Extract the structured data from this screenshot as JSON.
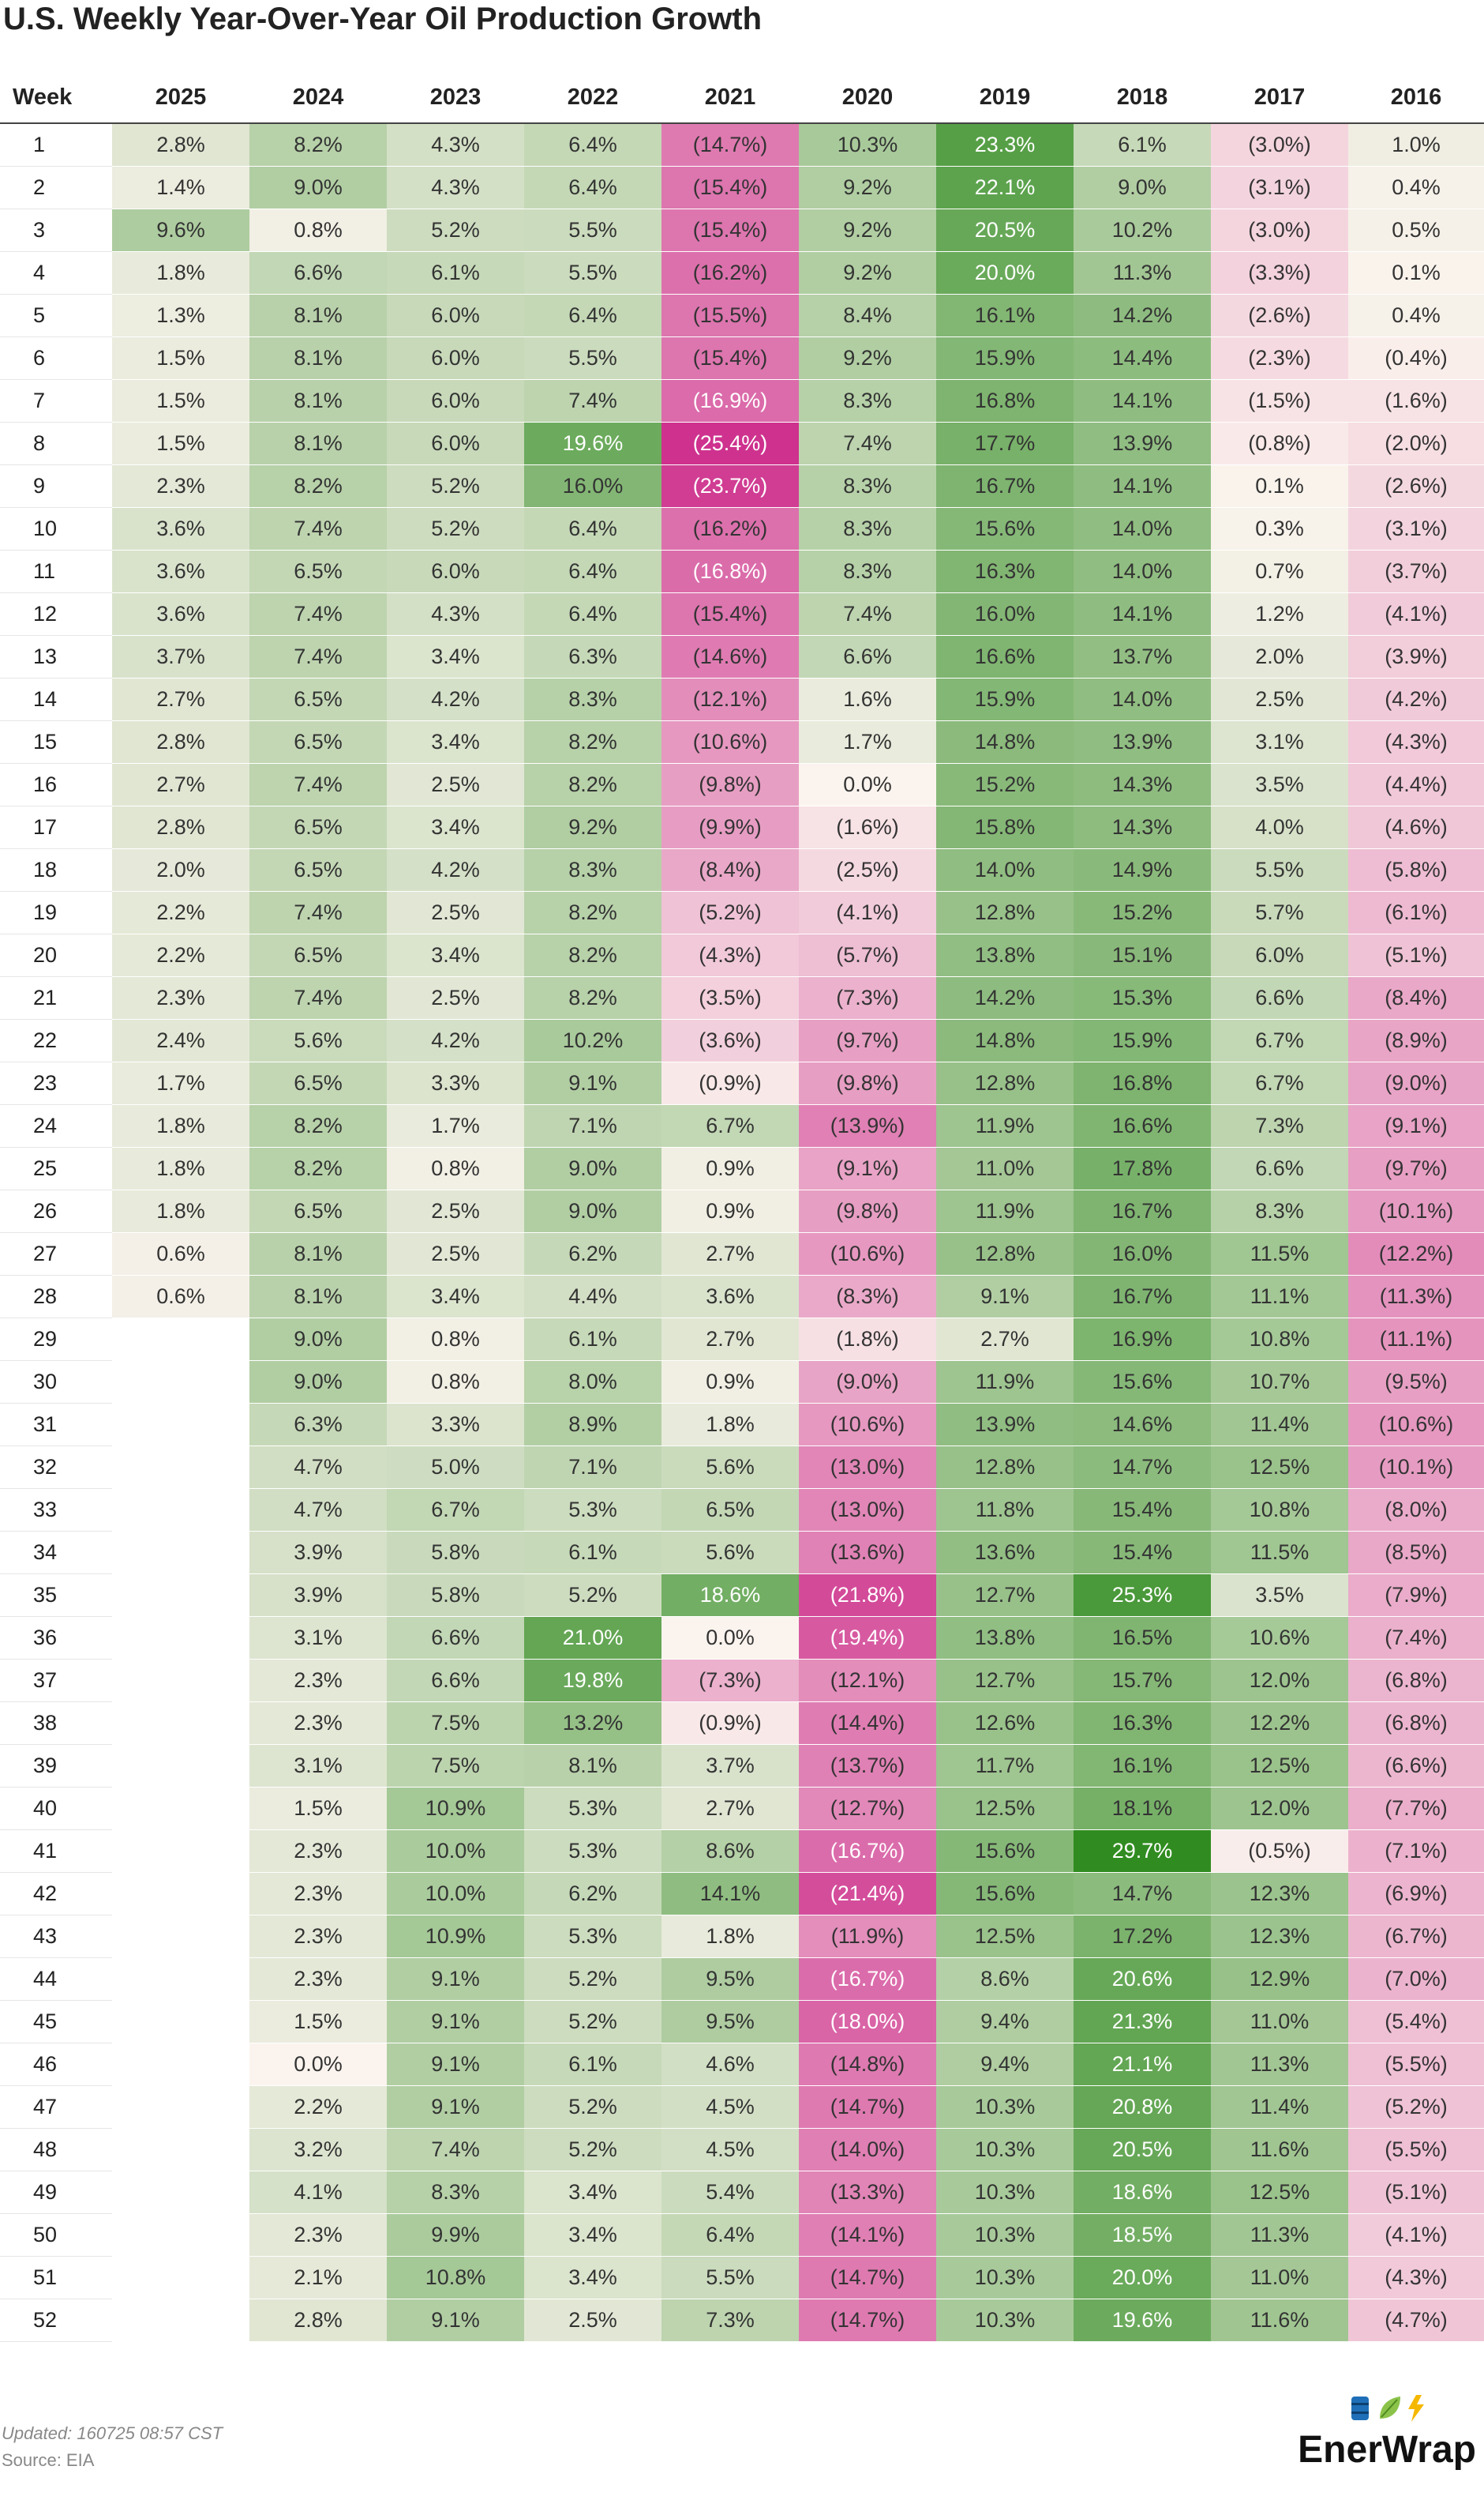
{
  "title": "U.S. Weekly Year-Over-Year Oil Production Growth",
  "footer": {
    "updated": "Updated: 160725 08:57 CST",
    "source": "Source: EIA"
  },
  "brand": {
    "name": "EnerWrap",
    "icons": [
      "oil-barrel-icon",
      "leaf-icon",
      "lightning-icon"
    ]
  },
  "chart_data": {
    "type": "heatmap",
    "title": "U.S. Weekly Year-Over-Year Oil Production Growth",
    "row_header": "Week",
    "columns": [
      "2025",
      "2024",
      "2023",
      "2022",
      "2021",
      "2020",
      "2019",
      "2018",
      "2017",
      "2016"
    ],
    "colors": {
      "negative_max": "#c7157f",
      "neutral": "#fbf4ee",
      "positive_max": "#2e8b1e"
    },
    "color_domain": [
      -30,
      30
    ],
    "rows": [
      {
        "week": "1",
        "values": [
          "2.8%",
          "8.2%",
          "4.3%",
          "6.4%",
          "(14.7%)",
          "10.3%",
          "23.3%",
          "6.1%",
          "(3.0%)",
          "1.0%"
        ]
      },
      {
        "week": "2",
        "values": [
          "1.4%",
          "9.0%",
          "4.3%",
          "6.4%",
          "(15.4%)",
          "9.2%",
          "22.1%",
          "9.0%",
          "(3.1%)",
          "0.4%"
        ]
      },
      {
        "week": "3",
        "values": [
          "9.6%",
          "0.8%",
          "5.2%",
          "5.5%",
          "(15.4%)",
          "9.2%",
          "20.5%",
          "10.2%",
          "(3.0%)",
          "0.5%"
        ]
      },
      {
        "week": "4",
        "values": [
          "1.8%",
          "6.6%",
          "6.1%",
          "5.5%",
          "(16.2%)",
          "9.2%",
          "20.0%",
          "11.3%",
          "(3.3%)",
          "0.1%"
        ]
      },
      {
        "week": "5",
        "values": [
          "1.3%",
          "8.1%",
          "6.0%",
          "6.4%",
          "(15.5%)",
          "8.4%",
          "16.1%",
          "14.2%",
          "(2.6%)",
          "0.4%"
        ]
      },
      {
        "week": "6",
        "values": [
          "1.5%",
          "8.1%",
          "6.0%",
          "5.5%",
          "(15.4%)",
          "9.2%",
          "15.9%",
          "14.4%",
          "(2.3%)",
          "(0.4%)"
        ]
      },
      {
        "week": "7",
        "values": [
          "1.5%",
          "8.1%",
          "6.0%",
          "7.4%",
          "(16.9%)",
          "8.3%",
          "16.8%",
          "14.1%",
          "(1.5%)",
          "(1.6%)"
        ]
      },
      {
        "week": "8",
        "values": [
          "1.5%",
          "8.1%",
          "6.0%",
          "19.6%",
          "(25.4%)",
          "7.4%",
          "17.7%",
          "13.9%",
          "(0.8%)",
          "(2.0%)"
        ]
      },
      {
        "week": "9",
        "values": [
          "2.3%",
          "8.2%",
          "5.2%",
          "16.0%",
          "(23.7%)",
          "8.3%",
          "16.7%",
          "14.1%",
          "0.1%",
          "(2.6%)"
        ]
      },
      {
        "week": "10",
        "values": [
          "3.6%",
          "7.4%",
          "5.2%",
          "6.4%",
          "(16.2%)",
          "8.3%",
          "15.6%",
          "14.0%",
          "0.3%",
          "(3.1%)"
        ]
      },
      {
        "week": "11",
        "values": [
          "3.6%",
          "6.5%",
          "6.0%",
          "6.4%",
          "(16.8%)",
          "8.3%",
          "16.3%",
          "14.0%",
          "0.7%",
          "(3.7%)"
        ]
      },
      {
        "week": "12",
        "values": [
          "3.6%",
          "7.4%",
          "4.3%",
          "6.4%",
          "(15.4%)",
          "7.4%",
          "16.0%",
          "14.1%",
          "1.2%",
          "(4.1%)"
        ]
      },
      {
        "week": "13",
        "values": [
          "3.7%",
          "7.4%",
          "3.4%",
          "6.3%",
          "(14.6%)",
          "6.6%",
          "16.6%",
          "13.7%",
          "2.0%",
          "(3.9%)"
        ]
      },
      {
        "week": "14",
        "values": [
          "2.7%",
          "6.5%",
          "4.2%",
          "8.3%",
          "(12.1%)",
          "1.6%",
          "15.9%",
          "14.0%",
          "2.5%",
          "(4.2%)"
        ]
      },
      {
        "week": "15",
        "values": [
          "2.8%",
          "6.5%",
          "3.4%",
          "8.2%",
          "(10.6%)",
          "1.7%",
          "14.8%",
          "13.9%",
          "3.1%",
          "(4.3%)"
        ]
      },
      {
        "week": "16",
        "values": [
          "2.7%",
          "7.4%",
          "2.5%",
          "8.2%",
          "(9.8%)",
          "0.0%",
          "15.2%",
          "14.3%",
          "3.5%",
          "(4.4%)"
        ]
      },
      {
        "week": "17",
        "values": [
          "2.8%",
          "6.5%",
          "3.4%",
          "9.2%",
          "(9.9%)",
          "(1.6%)",
          "15.8%",
          "14.3%",
          "4.0%",
          "(4.6%)"
        ]
      },
      {
        "week": "18",
        "values": [
          "2.0%",
          "6.5%",
          "4.2%",
          "8.3%",
          "(8.4%)",
          "(2.5%)",
          "14.0%",
          "14.9%",
          "5.5%",
          "(5.8%)"
        ]
      },
      {
        "week": "19",
        "values": [
          "2.2%",
          "7.4%",
          "2.5%",
          "8.2%",
          "(5.2%)",
          "(4.1%)",
          "12.8%",
          "15.2%",
          "5.7%",
          "(6.1%)"
        ]
      },
      {
        "week": "20",
        "values": [
          "2.2%",
          "6.5%",
          "3.4%",
          "8.2%",
          "(4.3%)",
          "(5.7%)",
          "13.8%",
          "15.1%",
          "6.0%",
          "(5.1%)"
        ]
      },
      {
        "week": "21",
        "values": [
          "2.3%",
          "7.4%",
          "2.5%",
          "8.2%",
          "(3.5%)",
          "(7.3%)",
          "14.2%",
          "15.3%",
          "6.6%",
          "(8.4%)"
        ]
      },
      {
        "week": "22",
        "values": [
          "2.4%",
          "5.6%",
          "4.2%",
          "10.2%",
          "(3.6%)",
          "(9.7%)",
          "14.8%",
          "15.9%",
          "6.7%",
          "(8.9%)"
        ]
      },
      {
        "week": "23",
        "values": [
          "1.7%",
          "6.5%",
          "3.3%",
          "9.1%",
          "(0.9%)",
          "(9.8%)",
          "12.8%",
          "16.8%",
          "6.7%",
          "(9.0%)"
        ]
      },
      {
        "week": "24",
        "values": [
          "1.8%",
          "8.2%",
          "1.7%",
          "7.1%",
          "6.7%",
          "(13.9%)",
          "11.9%",
          "16.6%",
          "7.3%",
          "(9.1%)"
        ]
      },
      {
        "week": "25",
        "values": [
          "1.8%",
          "8.2%",
          "0.8%",
          "9.0%",
          "0.9%",
          "(9.1%)",
          "11.0%",
          "17.8%",
          "6.6%",
          "(9.7%)"
        ]
      },
      {
        "week": "26",
        "values": [
          "1.8%",
          "6.5%",
          "2.5%",
          "9.0%",
          "0.9%",
          "(9.8%)",
          "11.9%",
          "16.7%",
          "8.3%",
          "(10.1%)"
        ]
      },
      {
        "week": "27",
        "values": [
          "0.6%",
          "8.1%",
          "2.5%",
          "6.2%",
          "2.7%",
          "(10.6%)",
          "12.8%",
          "16.0%",
          "11.5%",
          "(12.2%)"
        ]
      },
      {
        "week": "28",
        "values": [
          "0.6%",
          "8.1%",
          "3.4%",
          "4.4%",
          "3.6%",
          "(8.3%)",
          "9.1%",
          "16.7%",
          "11.1%",
          "(11.3%)"
        ]
      },
      {
        "week": "29",
        "values": [
          "",
          "9.0%",
          "0.8%",
          "6.1%",
          "2.7%",
          "(1.8%)",
          "2.7%",
          "16.9%",
          "10.8%",
          "(11.1%)"
        ]
      },
      {
        "week": "30",
        "values": [
          "",
          "9.0%",
          "0.8%",
          "8.0%",
          "0.9%",
          "(9.0%)",
          "11.9%",
          "15.6%",
          "10.7%",
          "(9.5%)"
        ]
      },
      {
        "week": "31",
        "values": [
          "",
          "6.3%",
          "3.3%",
          "8.9%",
          "1.8%",
          "(10.6%)",
          "13.9%",
          "14.6%",
          "11.4%",
          "(10.6%)"
        ]
      },
      {
        "week": "32",
        "values": [
          "",
          "4.7%",
          "5.0%",
          "7.1%",
          "5.6%",
          "(13.0%)",
          "12.8%",
          "14.7%",
          "12.5%",
          "(10.1%)"
        ]
      },
      {
        "week": "33",
        "values": [
          "",
          "4.7%",
          "6.7%",
          "5.3%",
          "6.5%",
          "(13.0%)",
          "11.8%",
          "15.4%",
          "10.8%",
          "(8.0%)"
        ]
      },
      {
        "week": "34",
        "values": [
          "",
          "3.9%",
          "5.8%",
          "6.1%",
          "5.6%",
          "(13.6%)",
          "13.6%",
          "15.4%",
          "11.5%",
          "(8.5%)"
        ]
      },
      {
        "week": "35",
        "values": [
          "",
          "3.9%",
          "5.8%",
          "5.2%",
          "18.6%",
          "(21.8%)",
          "12.7%",
          "25.3%",
          "3.5%",
          "(7.9%)"
        ]
      },
      {
        "week": "36",
        "values": [
          "",
          "3.1%",
          "6.6%",
          "21.0%",
          "0.0%",
          "(19.4%)",
          "13.8%",
          "16.5%",
          "10.6%",
          "(7.4%)"
        ]
      },
      {
        "week": "37",
        "values": [
          "",
          "2.3%",
          "6.6%",
          "19.8%",
          "(7.3%)",
          "(12.1%)",
          "12.7%",
          "15.7%",
          "12.0%",
          "(6.8%)"
        ]
      },
      {
        "week": "38",
        "values": [
          "",
          "2.3%",
          "7.5%",
          "13.2%",
          "(0.9%)",
          "(14.4%)",
          "12.6%",
          "16.3%",
          "12.2%",
          "(6.8%)"
        ]
      },
      {
        "week": "39",
        "values": [
          "",
          "3.1%",
          "7.5%",
          "8.1%",
          "3.7%",
          "(13.7%)",
          "11.7%",
          "16.1%",
          "12.5%",
          "(6.6%)"
        ]
      },
      {
        "week": "40",
        "values": [
          "",
          "1.5%",
          "10.9%",
          "5.3%",
          "2.7%",
          "(12.7%)",
          "12.5%",
          "18.1%",
          "12.0%",
          "(7.7%)"
        ]
      },
      {
        "week": "41",
        "values": [
          "",
          "2.3%",
          "10.0%",
          "5.3%",
          "8.6%",
          "(16.7%)",
          "15.6%",
          "29.7%",
          "(0.5%)",
          "(7.1%)"
        ]
      },
      {
        "week": "42",
        "values": [
          "",
          "2.3%",
          "10.0%",
          "6.2%",
          "14.1%",
          "(21.4%)",
          "15.6%",
          "14.7%",
          "12.3%",
          "(6.9%)"
        ]
      },
      {
        "week": "43",
        "values": [
          "",
          "2.3%",
          "10.9%",
          "5.3%",
          "1.8%",
          "(11.9%)",
          "12.5%",
          "17.2%",
          "12.3%",
          "(6.7%)"
        ]
      },
      {
        "week": "44",
        "values": [
          "",
          "2.3%",
          "9.1%",
          "5.2%",
          "9.5%",
          "(16.7%)",
          "8.6%",
          "20.6%",
          "12.9%",
          "(7.0%)"
        ]
      },
      {
        "week": "45",
        "values": [
          "",
          "1.5%",
          "9.1%",
          "5.2%",
          "9.5%",
          "(18.0%)",
          "9.4%",
          "21.3%",
          "11.0%",
          "(5.4%)"
        ]
      },
      {
        "week": "46",
        "values": [
          "",
          "0.0%",
          "9.1%",
          "6.1%",
          "4.6%",
          "(14.8%)",
          "9.4%",
          "21.1%",
          "11.3%",
          "(5.5%)"
        ]
      },
      {
        "week": "47",
        "values": [
          "",
          "2.2%",
          "9.1%",
          "5.2%",
          "4.5%",
          "(14.7%)",
          "10.3%",
          "20.8%",
          "11.4%",
          "(5.2%)"
        ]
      },
      {
        "week": "48",
        "values": [
          "",
          "3.2%",
          "7.4%",
          "5.2%",
          "4.5%",
          "(14.0%)",
          "10.3%",
          "20.5%",
          "11.6%",
          "(5.5%)"
        ]
      },
      {
        "week": "49",
        "values": [
          "",
          "4.1%",
          "8.3%",
          "3.4%",
          "5.4%",
          "(13.3%)",
          "10.3%",
          "18.6%",
          "12.5%",
          "(5.1%)"
        ]
      },
      {
        "week": "50",
        "values": [
          "",
          "2.3%",
          "9.9%",
          "3.4%",
          "6.4%",
          "(14.1%)",
          "10.3%",
          "18.5%",
          "11.3%",
          "(4.1%)"
        ]
      },
      {
        "week": "51",
        "values": [
          "",
          "2.1%",
          "10.8%",
          "3.4%",
          "5.5%",
          "(14.7%)",
          "10.3%",
          "20.0%",
          "11.0%",
          "(4.3%)"
        ]
      },
      {
        "week": "52",
        "values": [
          "",
          "2.8%",
          "9.1%",
          "2.5%",
          "7.3%",
          "(14.7%)",
          "10.3%",
          "19.6%",
          "11.6%",
          "(4.7%)"
        ]
      }
    ]
  }
}
